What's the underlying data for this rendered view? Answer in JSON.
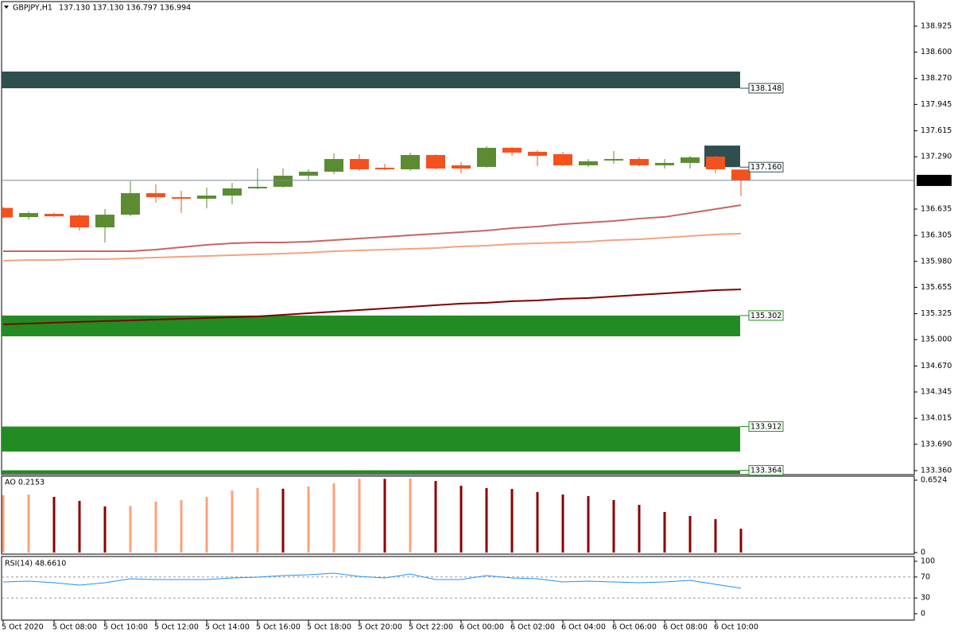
{
  "chart_data": [
    {
      "type": "candlestick",
      "symbol": "GBPJPY,H1",
      "quote": "137.130 137.130 136.797 136.994",
      "categories": [
        "5 Oct 2020",
        null,
        "5 Oct 08:00",
        null,
        "5 Oct 10:00",
        null,
        "5 Oct 12:00",
        null,
        "5 Oct 14:00",
        null,
        "5 Oct 16:00",
        null,
        "5 Oct 18:00",
        null,
        "5 Oct 20:00",
        null,
        "5 Oct 22:00",
        null,
        "6 Oct 00:00",
        null,
        "6 Oct 02:00",
        null,
        "6 Oct 04:00",
        null,
        "6 Oct 06:00",
        null,
        "6 Oct 08:00",
        null,
        "6 Oct 10:00",
        null
      ],
      "open": [
        136.65,
        136.535,
        136.575,
        136.555,
        136.406,
        136.565,
        136.834,
        136.784,
        136.765,
        136.804,
        136.894,
        136.914,
        137.053,
        137.103,
        137.262,
        137.153,
        137.133,
        137.312,
        137.183,
        137.163,
        137.402,
        137.352,
        137.322,
        137.183,
        137.243,
        137.262,
        137.183,
        137.213,
        137.292,
        137.13
      ],
      "high": [
        136.66,
        136.605,
        136.59,
        136.57,
        136.635,
        136.983,
        136.944,
        136.864,
        136.904,
        136.964,
        137.143,
        137.143,
        137.133,
        137.332,
        137.322,
        137.202,
        137.342,
        137.322,
        137.222,
        137.421,
        137.412,
        137.372,
        137.352,
        137.262,
        137.362,
        137.282,
        137.262,
        137.302,
        137.302,
        137.13
      ],
      "low": [
        136.52,
        136.506,
        136.53,
        136.366,
        136.217,
        136.545,
        136.715,
        136.585,
        136.645,
        136.695,
        136.884,
        136.904,
        136.994,
        137.073,
        137.113,
        137.123,
        137.113,
        137.133,
        137.083,
        137.153,
        137.302,
        137.173,
        137.173,
        137.163,
        137.202,
        137.173,
        137.143,
        137.143,
        137.083,
        136.797
      ],
      "close": [
        136.53,
        136.585,
        136.545,
        136.406,
        136.565,
        136.834,
        136.784,
        136.765,
        136.804,
        136.894,
        136.914,
        137.053,
        137.103,
        137.262,
        137.133,
        137.133,
        137.312,
        137.143,
        137.143,
        137.402,
        137.342,
        137.302,
        137.183,
        137.233,
        137.262,
        137.183,
        137.213,
        137.282,
        137.133,
        136.994
      ],
      "up_color": "#5b8c32",
      "down_color": "#f4511e",
      "series": [
        {
          "color": "#c86464",
          "values": [
            136.107,
            136.107,
            136.107,
            136.107,
            136.107,
            136.107,
            136.127,
            136.157,
            136.187,
            136.207,
            136.217,
            136.217,
            136.227,
            136.247,
            136.267,
            136.287,
            136.307,
            136.326,
            136.346,
            136.366,
            136.396,
            136.416,
            136.446,
            136.466,
            136.486,
            136.516,
            136.536,
            136.585,
            136.635,
            136.685
          ]
        },
        {
          "color": "#f5a27e",
          "values": [
            135.988,
            135.998,
            135.998,
            136.008,
            136.008,
            136.018,
            136.028,
            136.038,
            136.048,
            136.058,
            136.068,
            136.078,
            136.088,
            136.107,
            136.117,
            136.127,
            136.137,
            136.147,
            136.167,
            136.177,
            136.197,
            136.207,
            136.217,
            136.227,
            136.247,
            136.257,
            136.277,
            136.297,
            136.317,
            136.327
          ]
        },
        {
          "color": "#800000",
          "values": [
            135.192,
            135.202,
            135.212,
            135.222,
            135.232,
            135.241,
            135.251,
            135.261,
            135.271,
            135.281,
            135.291,
            135.311,
            135.331,
            135.351,
            135.371,
            135.391,
            135.411,
            135.431,
            135.451,
            135.461,
            135.481,
            135.491,
            135.511,
            135.521,
            135.541,
            135.561,
            135.58,
            135.6,
            135.62,
            135.63
          ]
        }
      ],
      "zones": [
        {
          "level": 138.148,
          "edge": 138.357,
          "start": 0,
          "color": "#2f4f4f"
        },
        {
          "level": {
            "value": 137.16,
            "label": "137.160"
          },
          "edge": 137.43,
          "start": 28,
          "color": "#2f4f4f"
        },
        {
          "level": 135.302,
          "edge": 135.042,
          "start": 0,
          "color": "#228b22"
        },
        {
          "level": 133.912,
          "edge": 133.599,
          "start": 0,
          "color": "#228b22"
        },
        {
          "level": 133.364,
          "edge": 133.32,
          "start": 0,
          "color": "#228b22"
        }
      ],
      "price_line_color": "#778899",
      "ylim": [
        133.31,
        139.233
      ],
      "yticks": [
        138.925,
        {
          "value": 138.6,
          "label": "138.600"
        },
        {
          "value": 138.27,
          "label": "138.270"
        },
        137.945,
        137.615,
        {
          "value": 137.29,
          "label": "137.290"
        },
        136.635,
        136.305,
        {
          "value": 135.98,
          "label": "135.980"
        },
        135.655,
        135.325,
        {
          "value": 135,
          "label": "135.000"
        },
        {
          "value": 134.67,
          "label": "134.670"
        },
        134.345,
        134.015,
        {
          "value": 133.69,
          "label": "133.690"
        },
        {
          "value": 133.36,
          "label": "133.360"
        }
      ]
    },
    {
      "type": "bar",
      "label": "AO 0.2153",
      "values": [
        0.516,
        0.523,
        0.502,
        0.466,
        0.416,
        0.42,
        0.459,
        0.473,
        0.502,
        0.559,
        0.581,
        0.575,
        0.595,
        0.624,
        0.666,
        0.664,
        0.667,
        0.645,
        0.602,
        0.581,
        0.573,
        0.545,
        0.523,
        0.509,
        0.473,
        0.43,
        0.366,
        0.33,
        0.301,
        0.2153
      ],
      "colors": [
        "#ffa07a",
        "#ffa07a",
        "#8b0000",
        "#8b0000",
        "#8b0000",
        "#ffa07a",
        "#ffa07a",
        "#ffa07a",
        "#ffa07a",
        "#ffa07a",
        "#ffa07a",
        "#8b0000",
        "#ffa07a",
        "#ffa07a",
        "#ffa07a",
        "#8b0000",
        "#ffa07a",
        "#8b0000",
        "#8b0000",
        "#8b0000",
        "#8b0000",
        "#8b0000",
        "#8b0000",
        "#8b0000",
        "#8b0000",
        "#8b0000",
        "#8b0000",
        "#8b0000",
        "#8b0000",
        "#8b0000"
      ],
      "ylim": [
        -0.014,
        0.688
      ],
      "yticks": [
        0,
        0.6524
      ]
    },
    {
      "type": "line",
      "label": "RSI(14) 48.6610",
      "color": "#1e90ff",
      "values": [
        60.6,
        62.1,
        59.1,
        54.5,
        59.1,
        66.7,
        65.2,
        65.2,
        65.2,
        68.2,
        69.7,
        72.7,
        74.2,
        77.3,
        71.2,
        68.2,
        75.8,
        65.2,
        65.2,
        72.7,
        68.2,
        66.7,
        60.6,
        62.1,
        60.6,
        59.1,
        60.6,
        63.6,
        56.1,
        48.661
      ],
      "levels": [
        70,
        30
      ],
      "ylim": [
        -12.1,
        109.1
      ],
      "yticks": [
        0,
        30,
        70,
        100
      ]
    }
  ]
}
